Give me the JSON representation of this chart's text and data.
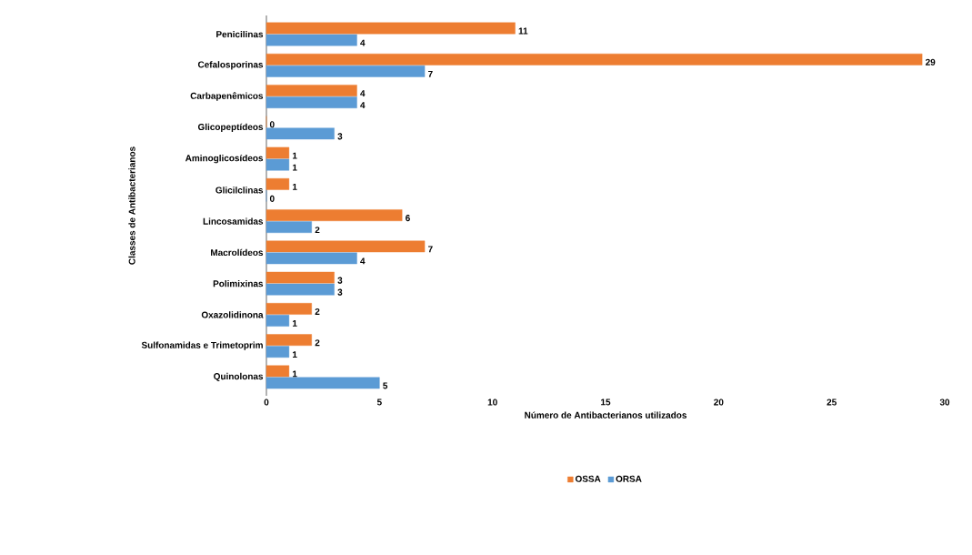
{
  "chart_data": {
    "type": "bar",
    "orientation": "horizontal",
    "xlabel": "Número de Antibacterianos utilizados",
    "ylabel": "Classes de Antibacterianos",
    "categories": [
      "Penicilinas",
      "Cefalosporinas",
      "Carbapenêmicos",
      "Glicopeptídeos",
      "Aminoglicosídeos",
      "Glicilclinas",
      "Lincosamidas",
      "Macrolídeos",
      "Polimixinas",
      "Oxazolidinona",
      "Sulfonamidas e Trimetoprim",
      "Quinolonas"
    ],
    "series": [
      {
        "name": "OSSA",
        "color": "#ed7d31",
        "values": [
          11,
          29,
          4,
          0,
          1,
          1,
          6,
          7,
          3,
          2,
          2,
          1
        ]
      },
      {
        "name": "ORSA",
        "color": "#5b9bd5",
        "values": [
          4,
          7,
          4,
          3,
          1,
          0,
          2,
          4,
          3,
          1,
          1,
          5
        ]
      }
    ],
    "xlim": [
      0,
      30
    ],
    "xticks": [
      0,
      5,
      10,
      15,
      20,
      25,
      30
    ],
    "data_labels": true,
    "legend": "bottom",
    "grid": false
  }
}
